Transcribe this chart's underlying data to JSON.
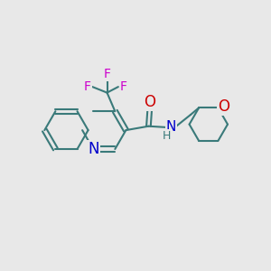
{
  "background_color": "#e8e8e8",
  "bond_color": "#3a7a7a",
  "bond_width": 1.5,
  "atom_colors": {
    "N": "#0000cc",
    "O": "#cc0000",
    "F": "#cc00cc",
    "H": "#3a7a7a"
  },
  "font_size": 11,
  "fig_width": 3.0,
  "fig_height": 3.0,
  "dpi": 100
}
